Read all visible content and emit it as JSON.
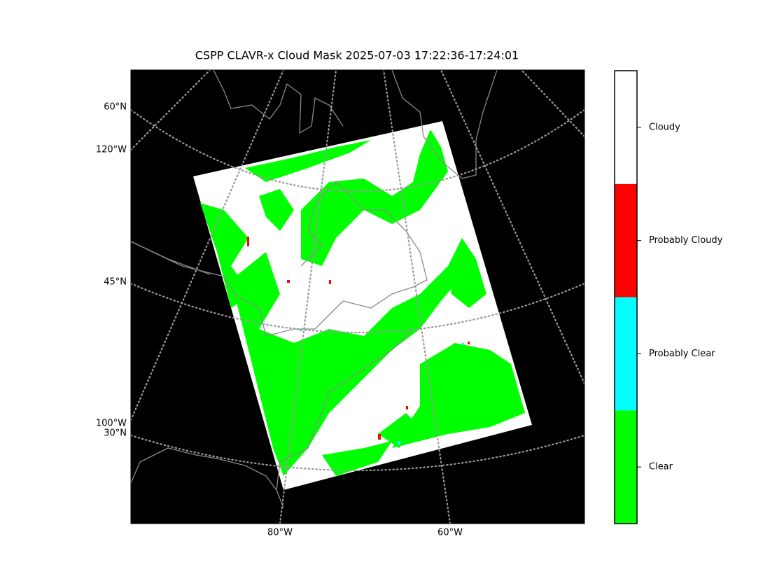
{
  "title": "CSPP CLAVR-x Cloud Mask 2025-07-03 17:22:36-17:24:01",
  "map": {
    "lat_labels": [
      "60°N",
      "45°N",
      "30°N"
    ],
    "lon_labels_left": [
      "120°W",
      "100°W"
    ],
    "lon_labels_bottom": [
      "80°W",
      "60°W"
    ]
  },
  "colorbar": {
    "categories": [
      {
        "label": "Clear",
        "color": "#00ff00"
      },
      {
        "label": "Probably Clear",
        "color": "#00ffff"
      },
      {
        "label": "Probably Cloudy",
        "color": "#ff0000"
      },
      {
        "label": "Cloudy",
        "color": "#ffffff"
      }
    ]
  }
}
